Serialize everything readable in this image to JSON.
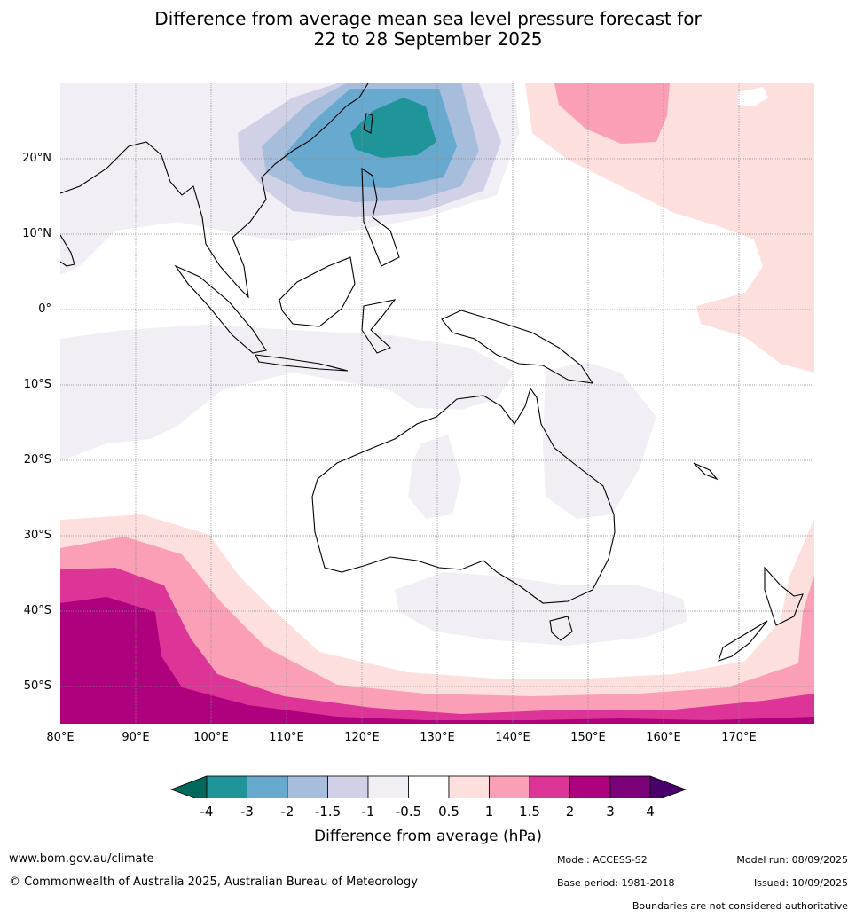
{
  "title": {
    "line1": "Difference from average mean sea level pressure forecast for",
    "line2": "22 to 28 September 2025"
  },
  "map": {
    "lat_labels": [
      "20°N",
      "10°N",
      "0°",
      "10°S",
      "20°S",
      "30°S",
      "40°S",
      "50°S"
    ],
    "lon_labels": [
      "80°E",
      "90°E",
      "100°E",
      "110°E",
      "120°E",
      "130°E",
      "140°E",
      "150°E",
      "160°E",
      "170°E"
    ],
    "extent": {
      "lon": [
        80,
        180
      ],
      "lat": [
        -55,
        30
      ]
    }
  },
  "colorbar": {
    "title": "Difference from average (hPa)",
    "ticks": [
      "-4",
      "-3",
      "-2",
      "-1.5",
      "-1",
      "-0.5",
      "0.5",
      "1",
      "1.5",
      "2",
      "3",
      "4"
    ],
    "colors": [
      "#00695c",
      "#1f9499",
      "#67a9cf",
      "#a6bddb",
      "#d0d1e6",
      "#f1eef6",
      "#ffffff",
      "#fde0dd",
      "#fa9fb5",
      "#dd3497",
      "#ae017e",
      "#7a0177",
      "#49006a"
    ]
  },
  "footer": {
    "website": "www.bom.gov.au/climate",
    "copyright": "© Commonwealth of Australia 2025, Australian Bureau of Meteorology",
    "model": "Model: ACCESS-S2",
    "base_period": "Base period: 1981-2018",
    "model_run": "Model run: 08/09/2025",
    "issued": "Issued: 10/09/2025",
    "disclaimer": "Boundaries are not considered authoritative"
  }
}
